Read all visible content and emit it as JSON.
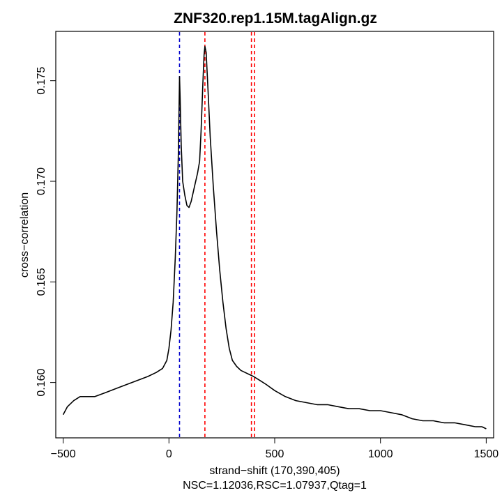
{
  "chart_data": {
    "type": "line",
    "title": "ZNF320.rep1.15M.tagAlign.gz",
    "xlabel": "strand−shift (170,390,405)",
    "ylabel": "cross−correlation",
    "subtitle": "NSC=1.12036,RSC=1.07937,Qtag=1",
    "xlim": [
      -535,
      1535
    ],
    "ylim": [
      0.15725,
      0.17745
    ],
    "x_ticks": [
      -500,
      0,
      500,
      1000,
      1500
    ],
    "x_tick_labels": [
      "−500",
      "0",
      "500",
      "1000",
      "1500"
    ],
    "y_ticks": [
      0.16,
      0.165,
      0.17,
      0.175
    ],
    "y_tick_labels": [
      "0.160",
      "0.165",
      "0.170",
      "0.175"
    ],
    "grid": false,
    "vlines": [
      {
        "x": 50,
        "color": "#0000cc",
        "style": "dashed"
      },
      {
        "x": 170,
        "color": "#ff0000",
        "style": "dashed"
      },
      {
        "x": 390,
        "color": "#ff0000",
        "style": "dashed"
      },
      {
        "x": 405,
        "color": "#ff0000",
        "style": "dashed"
      }
    ],
    "series": [
      {
        "color": "#000000",
        "points": [
          [
            -500,
            0.1584
          ],
          [
            -480,
            0.1588
          ],
          [
            -450,
            0.1591
          ],
          [
            -420,
            0.1593
          ],
          [
            -400,
            0.1593
          ],
          [
            -350,
            0.1593
          ],
          [
            -300,
            0.1595
          ],
          [
            -250,
            0.1597
          ],
          [
            -200,
            0.1599
          ],
          [
            -150,
            0.1601
          ],
          [
            -100,
            0.1603
          ],
          [
            -60,
            0.1605
          ],
          [
            -30,
            0.1607
          ],
          [
            -10,
            0.1611
          ],
          [
            0,
            0.1617
          ],
          [
            10,
            0.1626
          ],
          [
            20,
            0.164
          ],
          [
            30,
            0.1662
          ],
          [
            38,
            0.1685
          ],
          [
            44,
            0.1712
          ],
          [
            48,
            0.1738
          ],
          [
            50,
            0.1752
          ],
          [
            53,
            0.1741
          ],
          [
            58,
            0.1718
          ],
          [
            65,
            0.17
          ],
          [
            75,
            0.1693
          ],
          [
            85,
            0.1688
          ],
          [
            95,
            0.1687
          ],
          [
            105,
            0.169
          ],
          [
            120,
            0.1697
          ],
          [
            135,
            0.1704
          ],
          [
            145,
            0.171
          ],
          [
            152,
            0.1725
          ],
          [
            160,
            0.1748
          ],
          [
            166,
            0.1763
          ],
          [
            170,
            0.1767
          ],
          [
            176,
            0.1764
          ],
          [
            185,
            0.1745
          ],
          [
            195,
            0.1722
          ],
          [
            210,
            0.1697
          ],
          [
            225,
            0.1675
          ],
          [
            240,
            0.1656
          ],
          [
            255,
            0.164
          ],
          [
            270,
            0.1627
          ],
          [
            285,
            0.1617
          ],
          [
            300,
            0.1611
          ],
          [
            320,
            0.1608
          ],
          [
            340,
            0.1606
          ],
          [
            360,
            0.1605
          ],
          [
            380,
            0.1604
          ],
          [
            400,
            0.1603
          ],
          [
            430,
            0.1601
          ],
          [
            460,
            0.1599
          ],
          [
            500,
            0.1596
          ],
          [
            550,
            0.1593
          ],
          [
            600,
            0.1591
          ],
          [
            650,
            0.159
          ],
          [
            700,
            0.1589
          ],
          [
            750,
            0.1589
          ],
          [
            800,
            0.1588
          ],
          [
            850,
            0.1587
          ],
          [
            900,
            0.1587
          ],
          [
            950,
            0.1586
          ],
          [
            1000,
            0.1586
          ],
          [
            1050,
            0.1585
          ],
          [
            1100,
            0.1584
          ],
          [
            1150,
            0.1582
          ],
          [
            1200,
            0.1581
          ],
          [
            1250,
            0.1581
          ],
          [
            1300,
            0.158
          ],
          [
            1350,
            0.158
          ],
          [
            1400,
            0.1579
          ],
          [
            1450,
            0.1578
          ],
          [
            1480,
            0.1578
          ],
          [
            1500,
            0.1577
          ]
        ]
      }
    ]
  }
}
